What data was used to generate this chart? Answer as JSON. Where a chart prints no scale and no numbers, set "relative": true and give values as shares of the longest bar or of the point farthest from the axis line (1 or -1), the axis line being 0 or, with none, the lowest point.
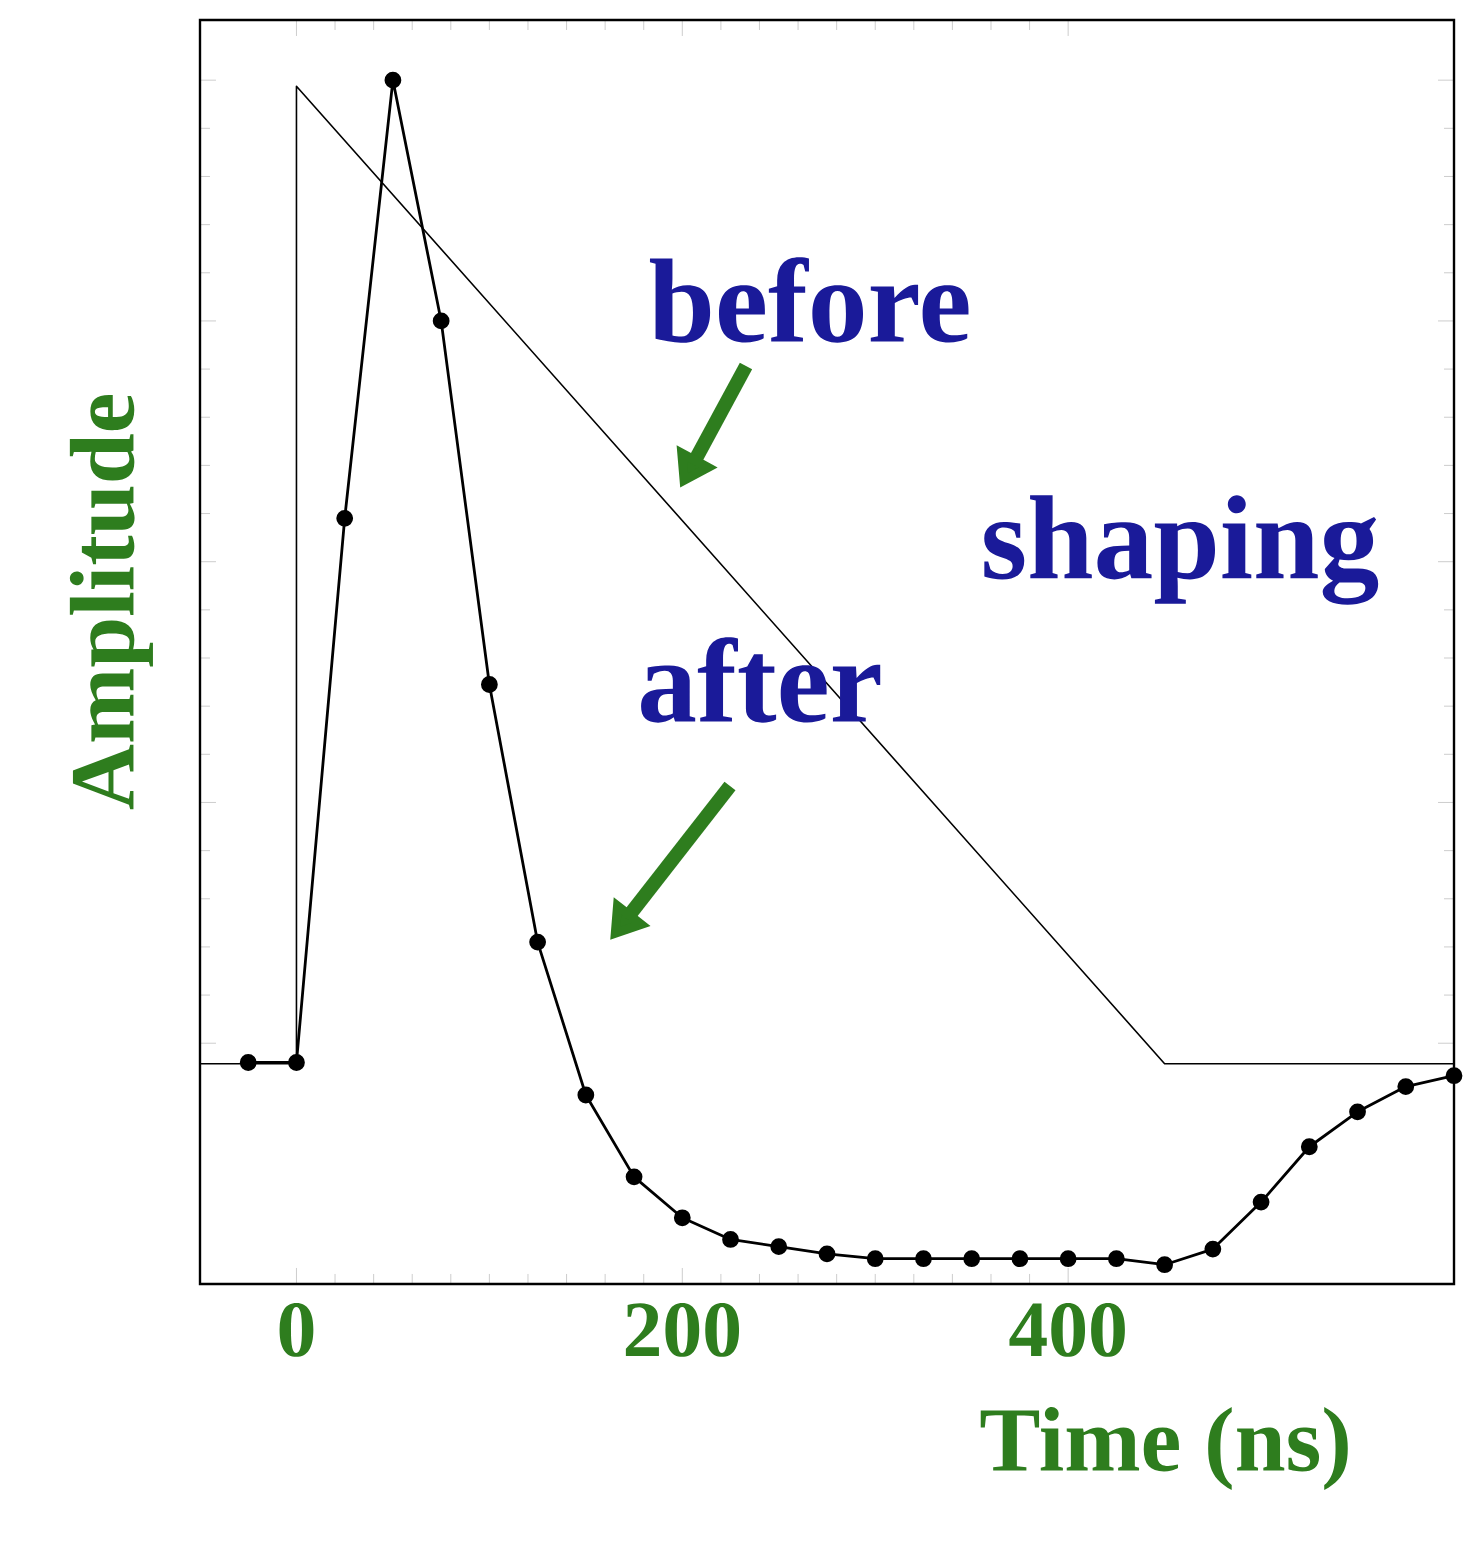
{
  "chart_data": {
    "type": "line",
    "xlabel": "Time (ns)",
    "ylabel": "Amplitude",
    "relative": true,
    "xlim": [
      -50,
      600
    ],
    "xticks": [
      0,
      200,
      400
    ],
    "annotations": [
      "before",
      "shaping",
      "after"
    ],
    "series": [
      {
        "color": "#000000",
        "marker": "none",
        "x": [
          -50,
          0,
          0,
          450,
          600
        ],
        "values": [
          0.183,
          0.183,
          0.995,
          0.183,
          0.183
        ]
      },
      {
        "color": "#000000",
        "marker": "circle",
        "x": [
          -25,
          0,
          25,
          50,
          75,
          100,
          125,
          150,
          175,
          200,
          225,
          250,
          275,
          300,
          325,
          350,
          375,
          400,
          425,
          450,
          475,
          500,
          525,
          550,
          575,
          600
        ],
        "values": [
          0.184,
          0.184,
          0.636,
          1.0,
          0.8,
          0.498,
          0.284,
          0.157,
          0.089,
          0.055,
          0.037,
          0.031,
          0.025,
          0.021,
          0.021,
          0.021,
          0.021,
          0.021,
          0.021,
          0.016,
          0.029,
          0.068,
          0.114,
          0.143,
          0.164,
          0.173
        ]
      }
    ]
  }
}
